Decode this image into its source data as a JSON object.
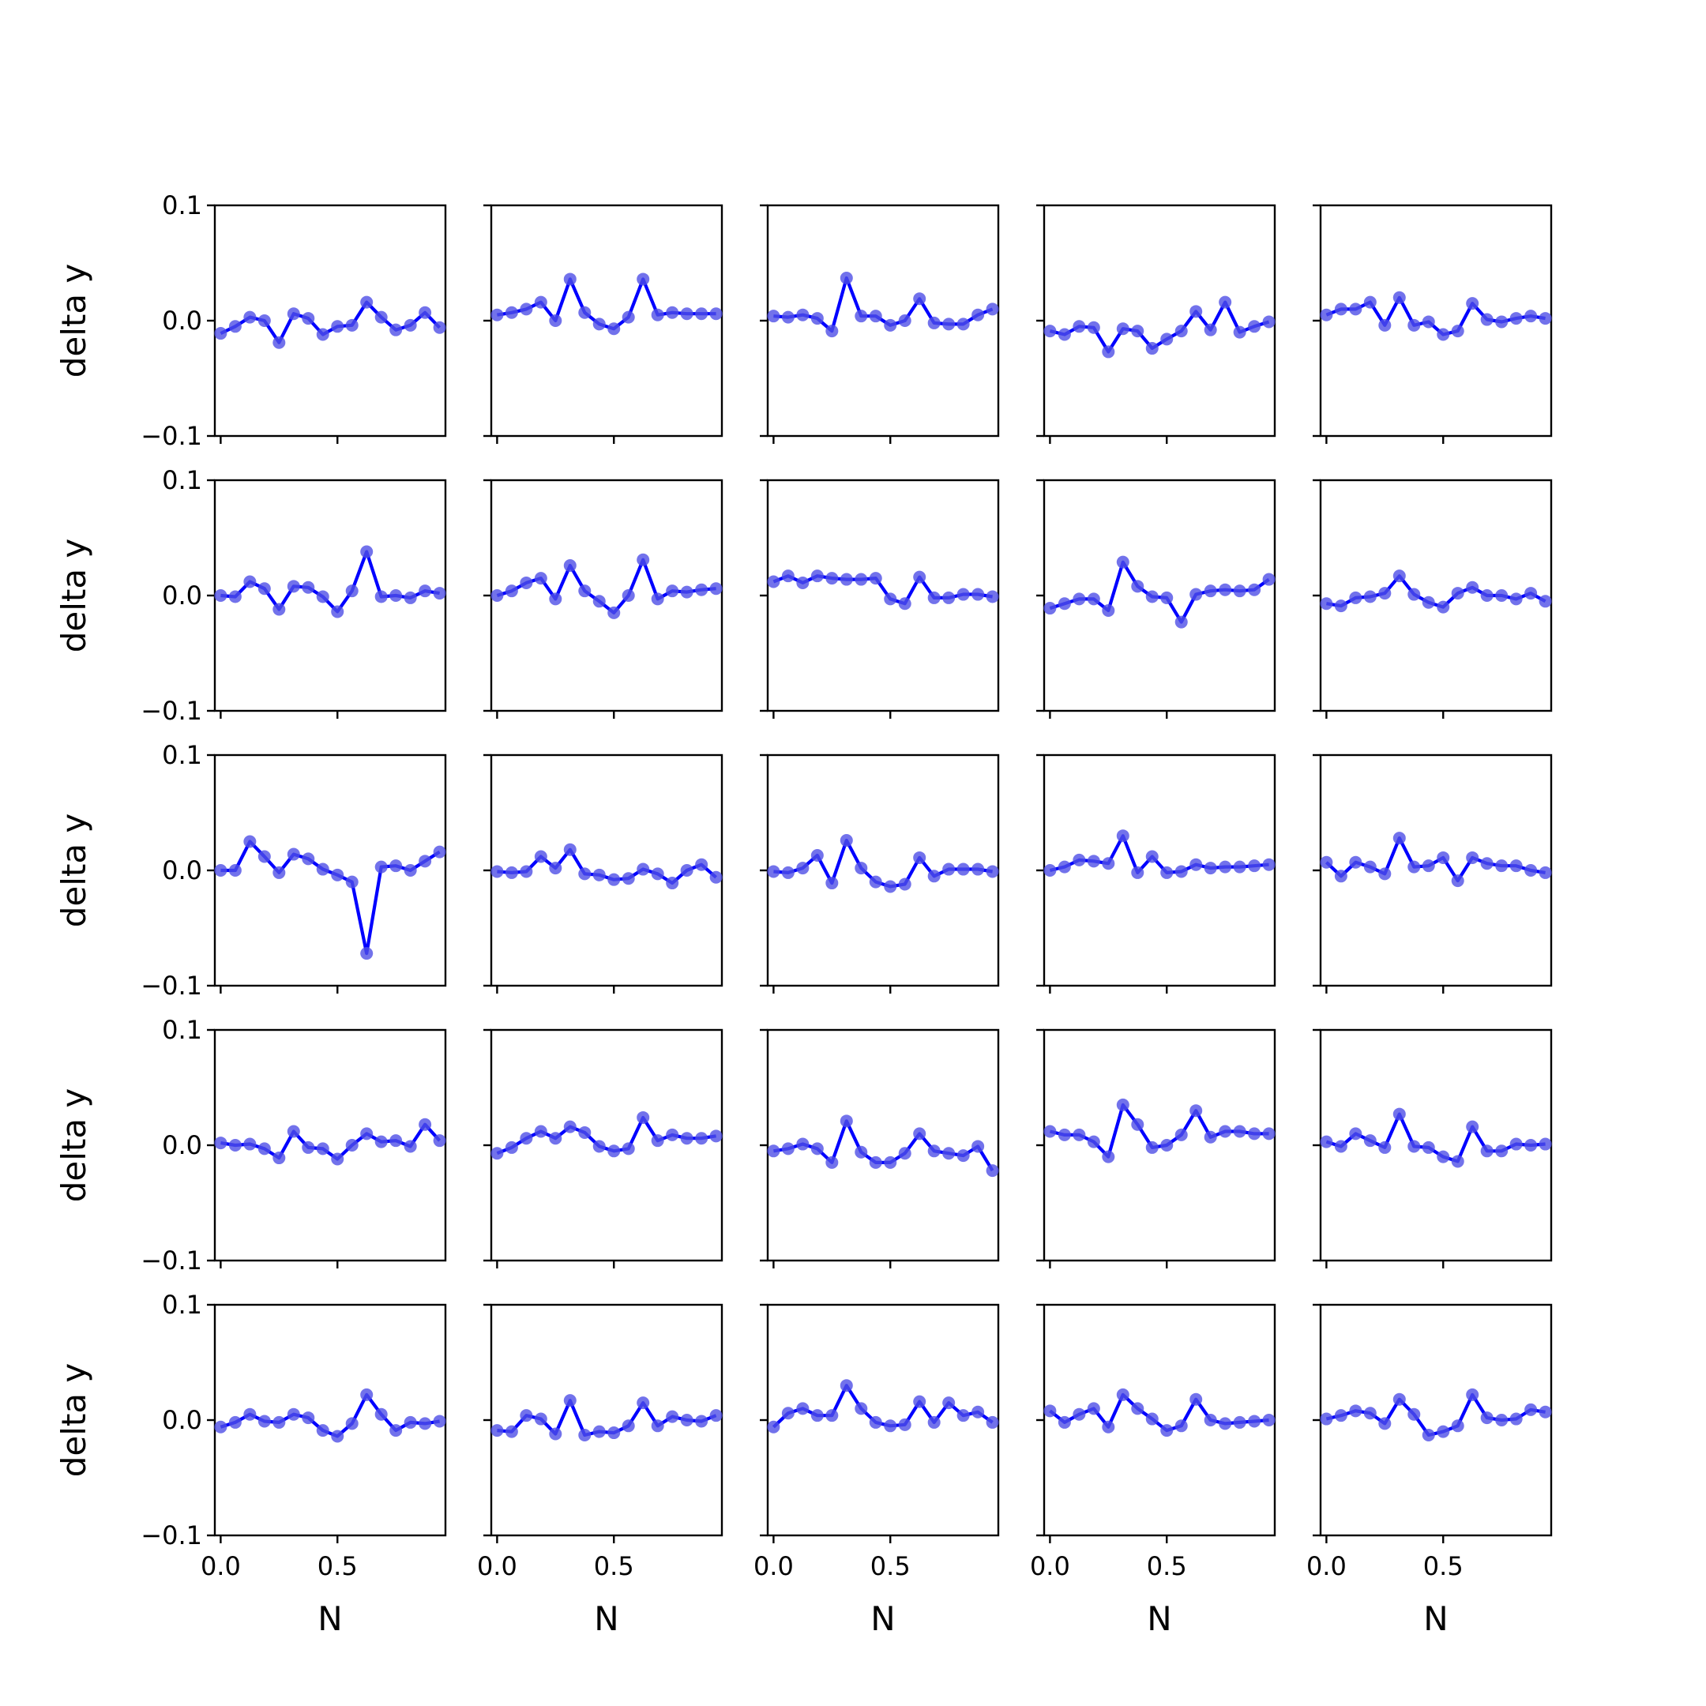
{
  "chart_data": {
    "type": "line",
    "layout": {
      "rows": 5,
      "cols": 5
    },
    "xlabel": "N",
    "ylabel": "delta y",
    "xlim": [
      -0.025,
      0.9625
    ],
    "ylim": [
      -0.1,
      0.1
    ],
    "xticks": [
      0.0,
      0.5
    ],
    "xtick_labels": [
      "0.0",
      "0.5"
    ],
    "yticks": [
      -0.1,
      0.0,
      0.1
    ],
    "ytick_labels": [
      "−0.1",
      "0.0",
      "0.1"
    ],
    "x": [
      0.0,
      0.0625,
      0.125,
      0.1875,
      0.25,
      0.3125,
      0.375,
      0.4375,
      0.5,
      0.5625,
      0.625,
      0.6875,
      0.75,
      0.8125,
      0.875,
      0.9375
    ],
    "line_color": "#0000ff",
    "marker_color": "#4f4fe6",
    "panels": [
      {
        "row": 0,
        "col": 0,
        "values": [
          -0.011,
          -0.005,
          0.003,
          0.0,
          -0.019,
          0.006,
          0.002,
          -0.012,
          -0.005,
          -0.004,
          0.016,
          0.003,
          -0.008,
          -0.004,
          0.007,
          -0.006
        ]
      },
      {
        "row": 0,
        "col": 1,
        "values": [
          0.005,
          0.007,
          0.01,
          0.016,
          0.0,
          0.036,
          0.007,
          -0.003,
          -0.007,
          0.003,
          0.036,
          0.005,
          0.007,
          0.006,
          0.006,
          0.006
        ]
      },
      {
        "row": 0,
        "col": 2,
        "values": [
          0.004,
          0.003,
          0.005,
          0.002,
          -0.009,
          0.037,
          0.004,
          0.004,
          -0.004,
          0.0,
          0.019,
          -0.002,
          -0.003,
          -0.003,
          0.005,
          0.01
        ]
      },
      {
        "row": 0,
        "col": 3,
        "values": [
          -0.009,
          -0.012,
          -0.005,
          -0.006,
          -0.027,
          -0.007,
          -0.009,
          -0.024,
          -0.016,
          -0.009,
          0.008,
          -0.008,
          0.016,
          -0.01,
          -0.005,
          -0.001
        ]
      },
      {
        "row": 0,
        "col": 4,
        "values": [
          0.005,
          0.01,
          0.01,
          0.016,
          -0.004,
          0.02,
          -0.004,
          -0.001,
          -0.012,
          -0.009,
          0.015,
          0.001,
          -0.001,
          0.002,
          0.004,
          0.002
        ]
      },
      {
        "row": 1,
        "col": 0,
        "values": [
          0.0,
          -0.001,
          0.012,
          0.006,
          -0.012,
          0.008,
          0.007,
          -0.001,
          -0.014,
          0.004,
          0.038,
          -0.001,
          0.0,
          -0.002,
          0.004,
          0.002
        ]
      },
      {
        "row": 1,
        "col": 1,
        "values": [
          0.0,
          0.004,
          0.011,
          0.015,
          -0.003,
          0.026,
          0.004,
          -0.005,
          -0.015,
          0.0,
          0.031,
          -0.003,
          0.004,
          0.003,
          0.005,
          0.006
        ]
      },
      {
        "row": 1,
        "col": 2,
        "values": [
          0.012,
          0.017,
          0.011,
          0.017,
          0.015,
          0.014,
          0.014,
          0.015,
          -0.003,
          -0.007,
          0.016,
          -0.002,
          -0.002,
          0.001,
          0.001,
          -0.001
        ]
      },
      {
        "row": 1,
        "col": 3,
        "values": [
          -0.011,
          -0.007,
          -0.003,
          -0.003,
          -0.013,
          0.029,
          0.008,
          -0.001,
          -0.002,
          -0.023,
          0.001,
          0.004,
          0.005,
          0.004,
          0.005,
          0.014
        ]
      },
      {
        "row": 1,
        "col": 4,
        "values": [
          -0.007,
          -0.009,
          -0.002,
          -0.001,
          0.002,
          0.017,
          0.001,
          -0.006,
          -0.01,
          0.002,
          0.007,
          0.0,
          0.0,
          -0.003,
          0.002,
          -0.005
        ]
      },
      {
        "row": 2,
        "col": 0,
        "values": [
          0.0,
          0.0,
          0.025,
          0.012,
          -0.002,
          0.014,
          0.01,
          0.001,
          -0.004,
          -0.01,
          -0.072,
          0.003,
          0.004,
          0.0,
          0.008,
          0.016
        ]
      },
      {
        "row": 2,
        "col": 1,
        "values": [
          -0.001,
          -0.002,
          -0.001,
          0.012,
          0.002,
          0.018,
          -0.003,
          -0.004,
          -0.008,
          -0.007,
          0.001,
          -0.003,
          -0.011,
          0.0,
          0.005,
          -0.006
        ]
      },
      {
        "row": 2,
        "col": 2,
        "values": [
          -0.001,
          -0.002,
          0.002,
          0.013,
          -0.011,
          0.026,
          0.002,
          -0.01,
          -0.014,
          -0.012,
          0.011,
          -0.005,
          0.001,
          0.001,
          0.001,
          -0.001
        ]
      },
      {
        "row": 2,
        "col": 3,
        "values": [
          0.0,
          0.003,
          0.009,
          0.008,
          0.006,
          0.03,
          -0.002,
          0.012,
          -0.002,
          -0.001,
          0.005,
          0.002,
          0.003,
          0.003,
          0.004,
          0.005
        ]
      },
      {
        "row": 2,
        "col": 4,
        "values": [
          0.007,
          -0.005,
          0.007,
          0.003,
          -0.003,
          0.028,
          0.003,
          0.004,
          0.011,
          -0.009,
          0.011,
          0.006,
          0.004,
          0.004,
          0.0,
          -0.002
        ]
      },
      {
        "row": 3,
        "col": 0,
        "values": [
          0.002,
          0.0,
          0.001,
          -0.003,
          -0.011,
          0.012,
          -0.002,
          -0.003,
          -0.012,
          0.0,
          0.01,
          0.003,
          0.004,
          -0.001,
          0.018,
          0.004
        ]
      },
      {
        "row": 3,
        "col": 1,
        "values": [
          -0.007,
          -0.002,
          0.006,
          0.012,
          0.006,
          0.016,
          0.011,
          -0.001,
          -0.005,
          -0.003,
          0.024,
          0.004,
          0.009,
          0.006,
          0.006,
          0.008
        ]
      },
      {
        "row": 3,
        "col": 2,
        "values": [
          -0.005,
          -0.003,
          0.001,
          -0.003,
          -0.015,
          0.021,
          -0.006,
          -0.015,
          -0.015,
          -0.007,
          0.01,
          -0.005,
          -0.007,
          -0.009,
          -0.001,
          -0.022
        ]
      },
      {
        "row": 3,
        "col": 3,
        "values": [
          0.012,
          0.009,
          0.009,
          0.003,
          -0.01,
          0.035,
          0.018,
          -0.002,
          0.0,
          0.009,
          0.03,
          0.007,
          0.012,
          0.012,
          0.01,
          0.01
        ]
      },
      {
        "row": 3,
        "col": 4,
        "values": [
          0.003,
          -0.001,
          0.01,
          0.004,
          -0.002,
          0.027,
          -0.001,
          -0.002,
          -0.01,
          -0.014,
          0.016,
          -0.005,
          -0.005,
          0.001,
          0.0,
          0.001
        ]
      },
      {
        "row": 4,
        "col": 0,
        "values": [
          -0.006,
          -0.002,
          0.005,
          -0.001,
          -0.002,
          0.005,
          0.002,
          -0.009,
          -0.014,
          -0.003,
          0.022,
          0.005,
          -0.009,
          -0.002,
          -0.003,
          -0.001
        ]
      },
      {
        "row": 4,
        "col": 1,
        "values": [
          -0.009,
          -0.01,
          0.004,
          0.001,
          -0.012,
          0.017,
          -0.013,
          -0.01,
          -0.011,
          -0.005,
          0.015,
          -0.005,
          0.003,
          0.0,
          -0.001,
          0.004
        ]
      },
      {
        "row": 4,
        "col": 2,
        "values": [
          -0.006,
          0.006,
          0.01,
          0.004,
          0.004,
          0.03,
          0.01,
          -0.002,
          -0.005,
          -0.004,
          0.016,
          -0.002,
          0.015,
          0.004,
          0.007,
          -0.002
        ]
      },
      {
        "row": 4,
        "col": 3,
        "values": [
          0.008,
          -0.002,
          0.005,
          0.01,
          -0.006,
          0.022,
          0.01,
          0.001,
          -0.009,
          -0.005,
          0.018,
          0.0,
          -0.003,
          -0.002,
          -0.001,
          0.0
        ]
      },
      {
        "row": 4,
        "col": 4,
        "values": [
          0.001,
          0.004,
          0.008,
          0.006,
          -0.003,
          0.018,
          0.005,
          -0.013,
          -0.01,
          -0.005,
          0.022,
          0.002,
          0.0,
          0.001,
          0.009,
          0.007
        ]
      }
    ]
  }
}
